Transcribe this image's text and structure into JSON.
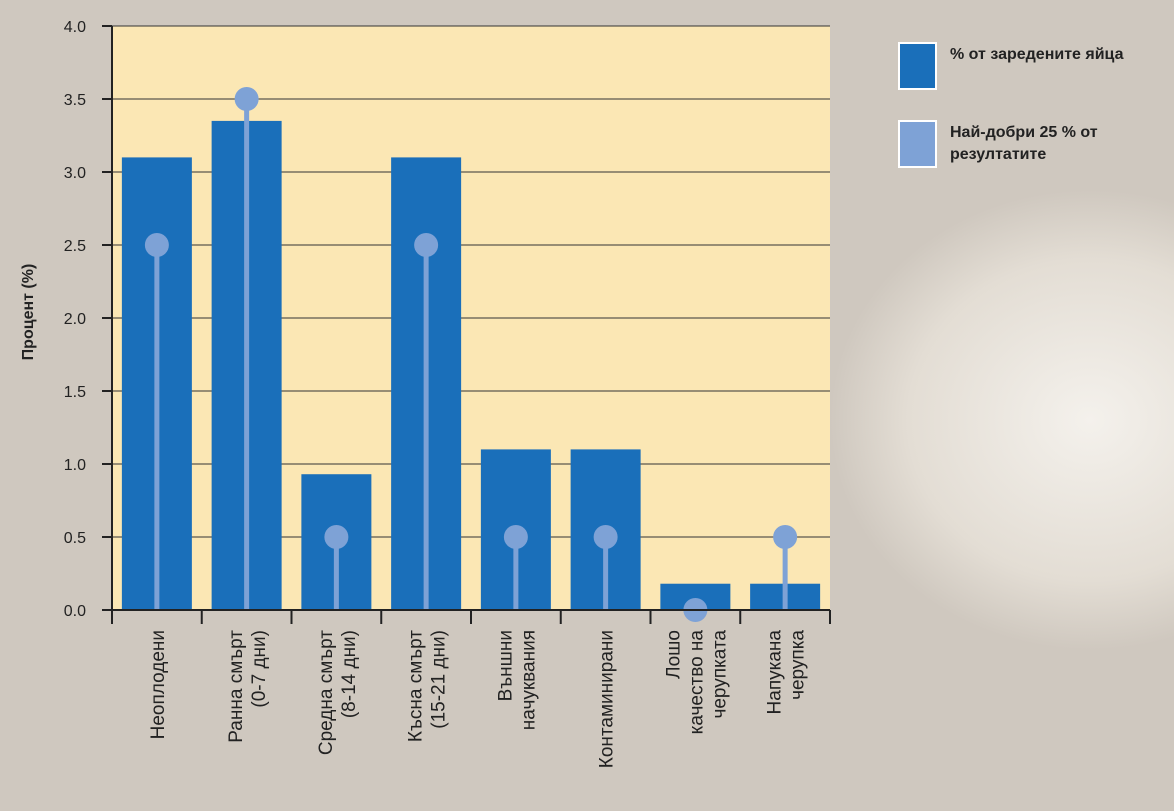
{
  "chart_data": {
    "type": "bar",
    "ylabel": "Процент (%)",
    "xlabel": "",
    "ylim": [
      0,
      4.0
    ],
    "yticks": [
      "0.0",
      "0.5",
      "1.0",
      "1.5",
      "2.0",
      "2.5",
      "3.0",
      "3.5",
      "4.0"
    ],
    "categories": [
      [
        "Неоплодени"
      ],
      [
        "Ранна смърт",
        "(0-7 дни)"
      ],
      [
        "Средна смърт",
        "(8-14 дни)"
      ],
      [
        "Късна смърт",
        "(15-21 дни)"
      ],
      [
        "Външни",
        "начуквания"
      ],
      [
        "Контаминирани"
      ],
      [
        "Лошо",
        "качество на",
        "черупката"
      ],
      [
        "Напукана",
        "черупка"
      ]
    ],
    "series": [
      {
        "name": "% от заредените яйца",
        "style": "bar",
        "color": "#1a6fba",
        "values": [
          3.1,
          3.35,
          0.93,
          3.1,
          1.1,
          1.1,
          0.18,
          0.18
        ]
      },
      {
        "name": "Най-добри 25 % от резултатите",
        "style": "lollipop",
        "color": "#7ea2d6",
        "values": [
          2.5,
          3.5,
          0.5,
          2.5,
          0.5,
          0.5,
          0.0,
          0.5
        ]
      }
    ],
    "plot_background": "#fbe7b4",
    "grid": true,
    "legend_position": "right"
  },
  "legend": {
    "items": [
      {
        "label": "% от заредените яйца",
        "color": "#1a6fba"
      },
      {
        "label": "Най-добри 25 % от резултатите",
        "color": "#7ea2d6"
      }
    ]
  }
}
